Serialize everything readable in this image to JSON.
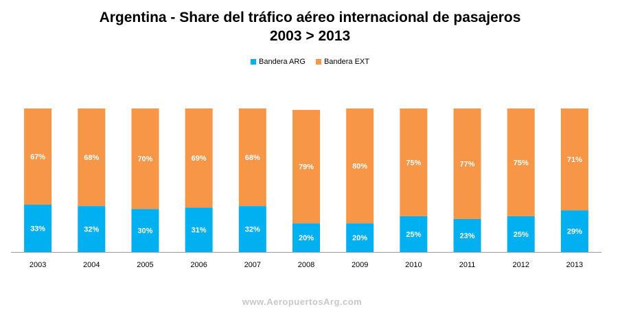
{
  "chart_data": {
    "type": "bar",
    "stacked": true,
    "title": "Argentina - Share del tráfico aéreo internacional de pasajeros",
    "subtitle": "2003 > 2013",
    "categories": [
      "2003",
      "2004",
      "2005",
      "2006",
      "2007",
      "2008",
      "2009",
      "2010",
      "2011",
      "2012",
      "2013"
    ],
    "series": [
      {
        "name": "Bandera ARG",
        "color": "#00b0f0",
        "values": [
          33,
          32,
          30,
          31,
          32,
          20,
          20,
          25,
          23,
          25,
          29
        ]
      },
      {
        "name": "Bandera EXT",
        "color": "#f79646",
        "values": [
          67,
          68,
          70,
          69,
          68,
          79,
          80,
          75,
          77,
          75,
          71
        ]
      }
    ],
    "value_format": "%",
    "ylim": [
      0,
      100
    ],
    "legend_position": "top-center",
    "grid": false
  },
  "watermark": "www.AeropuertosArg.com"
}
